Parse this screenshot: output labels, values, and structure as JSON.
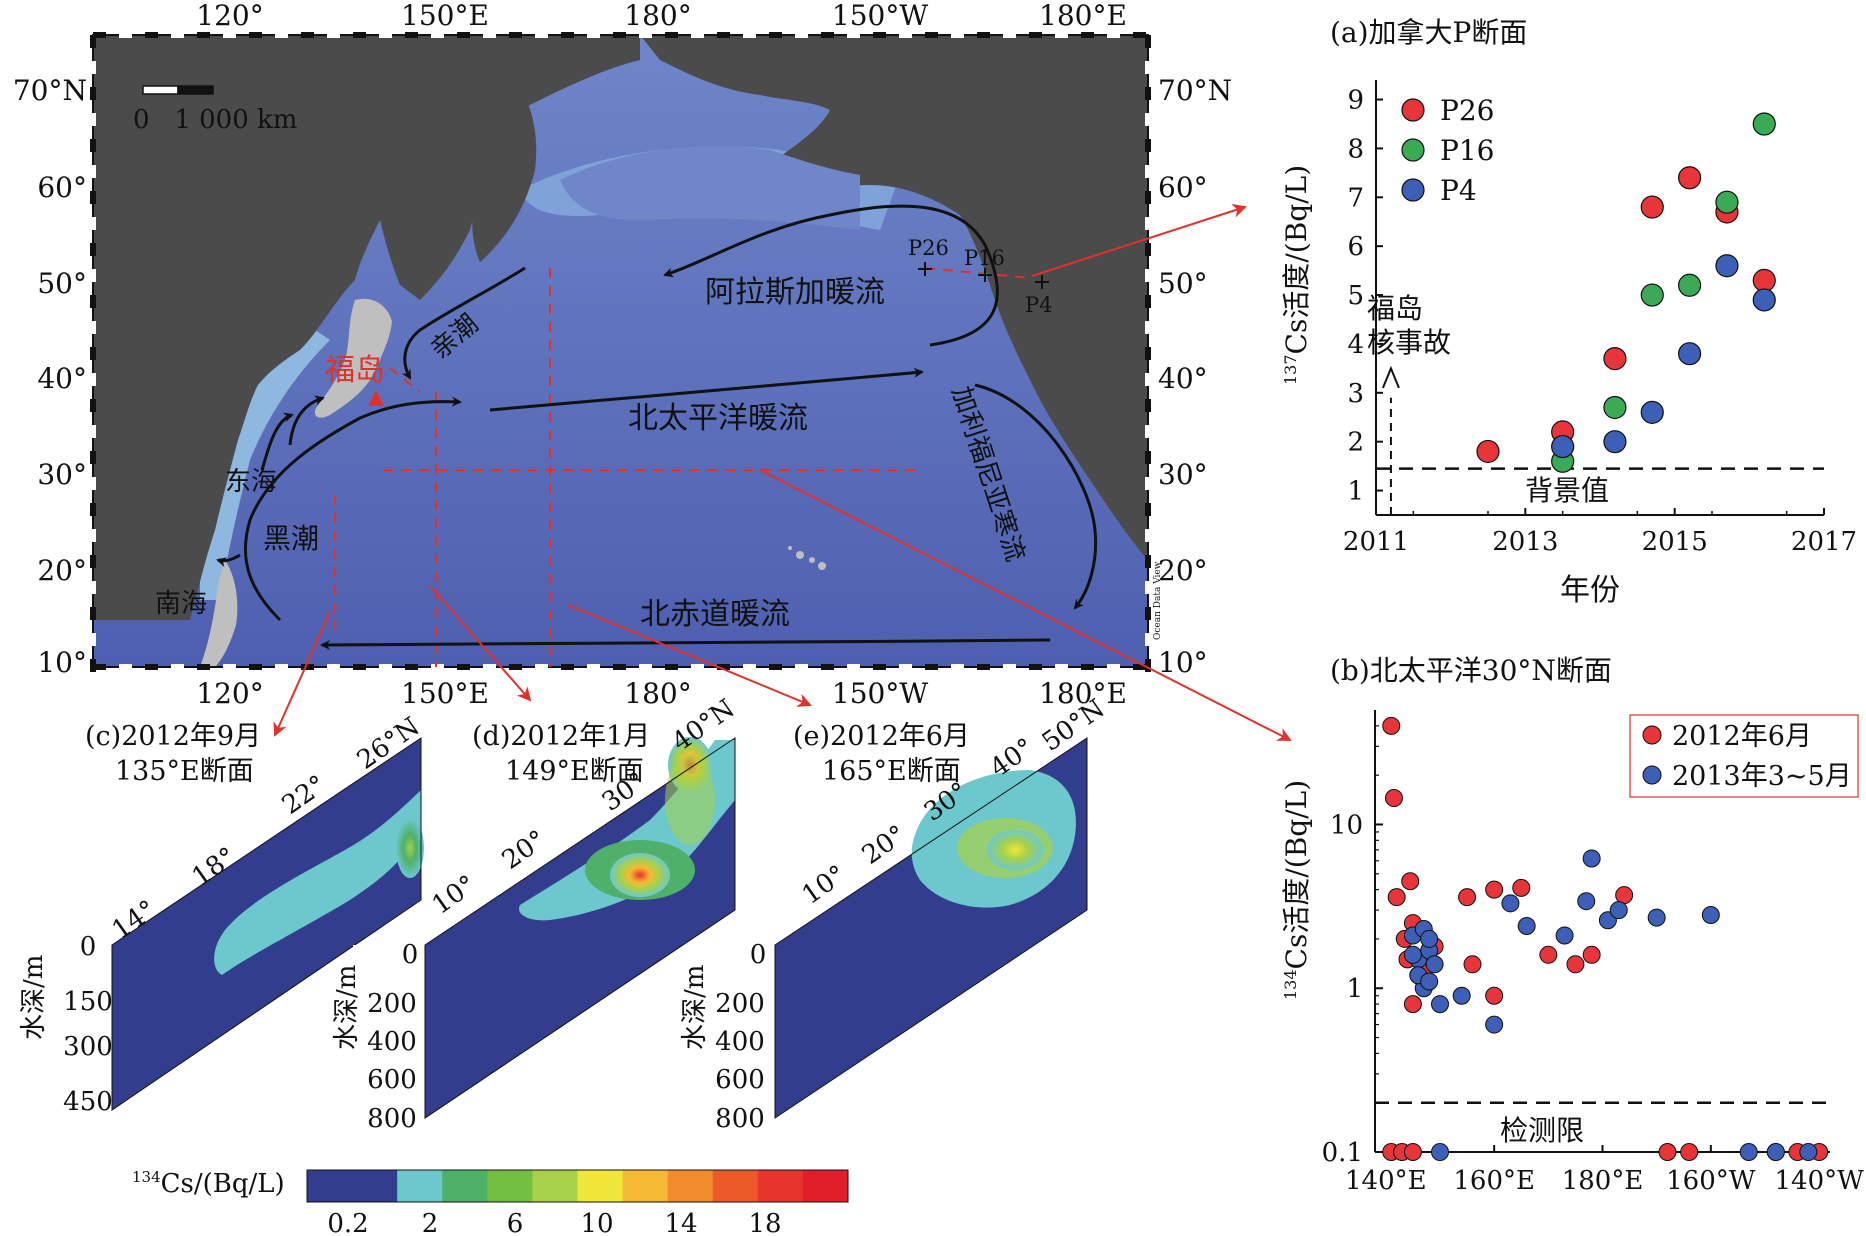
{
  "map": {
    "top_lon_ticks": [
      "120°",
      "150°E",
      "180°",
      "150°W",
      "180°E"
    ],
    "bottom_lon_ticks": [
      "120°",
      "150°E",
      "180°",
      "150°W",
      "180°E"
    ],
    "lat_ticks": [
      "70°N",
      "60°",
      "50°",
      "40°",
      "30°",
      "20°",
      "10°"
    ],
    "scale_label": "0   1 000 km",
    "watermark": "Ocean Data View",
    "labels": {
      "fukushima": "福岛",
      "oyashio": "亲潮",
      "kuroshio": "黑潮",
      "east_china_sea": "东海",
      "south_china_sea": "南海",
      "alaska_current": "阿拉斯加暖流",
      "north_pacific_current": "北太平洋暖流",
      "california_current": "加利福尼亚寒流",
      "north_equatorial_current": "北赤道暖流",
      "p26": "P26",
      "p16": "P16",
      "p4": "P4"
    }
  },
  "panel_a": {
    "title": "(a)加拿大P断面",
    "ylabel_sup": "137",
    "ylabel": "Cs活度/(Bq/L)",
    "xlabel": "年份",
    "fukushima_label_line1": "福岛",
    "fukushima_label_line2": "核事故",
    "background_label": "背景值",
    "chart_data": {
      "type": "scatter",
      "xlim": [
        2011,
        2017
      ],
      "ylim": [
        0.5,
        9.4
      ],
      "x_ticks": [
        "2011",
        "2013",
        "2015",
        "2017"
      ],
      "y_ticks": [
        "1",
        "2",
        "3",
        "4",
        "5",
        "6",
        "7",
        "8",
        "9"
      ],
      "legend_position": "top-left",
      "background_value": 1.45,
      "series": [
        {
          "name": "P26",
          "color": "#e8353a",
          "points": [
            [
              2012.5,
              1.8
            ],
            [
              2013.5,
              2.2
            ],
            [
              2014.2,
              3.7
            ],
            [
              2014.7,
              6.8
            ],
            [
              2015.2,
              7.4
            ],
            [
              2015.7,
              6.7
            ],
            [
              2016.2,
              5.3
            ]
          ]
        },
        {
          "name": "P16",
          "color": "#3aaa55",
          "points": [
            [
              2013.5,
              1.6
            ],
            [
              2014.2,
              2.7
            ],
            [
              2014.7,
              5.0
            ],
            [
              2015.2,
              5.2
            ],
            [
              2015.7,
              6.9
            ],
            [
              2016.2,
              8.5
            ]
          ]
        },
        {
          "name": "P4",
          "color": "#3d5fb8",
          "points": [
            [
              2013.5,
              1.9
            ],
            [
              2014.2,
              2.0
            ],
            [
              2014.7,
              2.6
            ],
            [
              2015.2,
              3.8
            ],
            [
              2015.7,
              5.6
            ],
            [
              2016.2,
              4.9
            ]
          ]
        }
      ]
    }
  },
  "panel_b": {
    "title": "(b)北太平洋30°N断面",
    "ylabel_sup": "134",
    "ylabel": "Cs活度/(Bq/L)",
    "detection_label": "检测限",
    "chart_data": {
      "type": "scatter",
      "y_scale": "log",
      "ylim": [
        0.1,
        50
      ],
      "y_ticks": [
        "0.1",
        "1",
        "10"
      ],
      "x_ticks": [
        "140°E",
        "160°E",
        "180°E",
        "160°W",
        "140°W"
      ],
      "xlim": [
        138,
        222
      ],
      "detection_limit": 0.2,
      "legend_position": "top-right",
      "series": [
        {
          "name": "2012年6月",
          "color": "#e8353a",
          "points": [
            [
              141,
              40
            ],
            [
              141.5,
              14.5
            ],
            [
              142,
              3.6
            ],
            [
              144.5,
              4.5
            ],
            [
              143.5,
              2.0
            ],
            [
              144,
              1.5
            ],
            [
              145,
              2.5
            ],
            [
              146,
              1.2
            ],
            [
              145,
              0.8
            ],
            [
              149,
              1.8
            ],
            [
              147,
              1.3
            ],
            [
              155,
              3.6
            ],
            [
              156,
              1.4
            ],
            [
              160,
              4.0
            ],
            [
              160,
              0.9
            ],
            [
              165,
              4.1
            ],
            [
              170,
              1.6
            ],
            [
              175,
              1.4
            ],
            [
              178,
              1.6
            ],
            [
              184,
              3.7
            ],
            [
              141,
              0.1
            ],
            [
              143,
              0.1
            ],
            [
              145,
              0.1
            ],
            [
              192,
              0.1
            ],
            [
              196,
              0.1
            ],
            [
              212,
              0.1
            ],
            [
              216,
              0.1
            ],
            [
              220,
              0.1
            ]
          ]
        },
        {
          "name": "2013年3~5月",
          "color": "#3d5fb8",
          "points": [
            [
              145,
              2.1
            ],
            [
              146,
              1.5
            ],
            [
              147,
              2.3
            ],
            [
              148,
              1.7
            ],
            [
              147,
              1.0
            ],
            [
              146,
              1.2
            ],
            [
              148,
              2.0
            ],
            [
              149,
              1.4
            ],
            [
              150,
              0.8
            ],
            [
              148,
              1.1
            ],
            [
              145,
              1.6
            ],
            [
              154,
              0.9
            ],
            [
              160,
              0.6
            ],
            [
              163,
              3.3
            ],
            [
              166,
              2.4
            ],
            [
              173,
              2.1
            ],
            [
              177,
              3.4
            ],
            [
              178,
              6.2
            ],
            [
              181,
              2.6
            ],
            [
              183,
              3.0
            ],
            [
              190,
              2.7
            ],
            [
              200,
              2.8
            ],
            [
              150,
              0.1
            ],
            [
              207,
              0.1
            ],
            [
              212,
              0.1
            ],
            [
              218,
              0.1
            ]
          ]
        }
      ]
    }
  },
  "sections": [
    {
      "title_line1": "(c)2012年9月",
      "title_line2": "135°E断面",
      "lat_ticks": [
        "14°",
        "18°",
        "22°",
        "26°N"
      ],
      "depth_ticks": [
        "0",
        "150",
        "300",
        "450"
      ],
      "depth_label": "水深/m"
    },
    {
      "title_line1": "(d)2012年1月",
      "title_line2": "149°E断面",
      "lat_ticks": [
        "10°",
        "20°",
        "30°",
        "40°N"
      ],
      "depth_ticks": [
        "0",
        "200",
        "400",
        "600",
        "800"
      ],
      "depth_label": "水深/m"
    },
    {
      "title_line1": "(e)2012年6月",
      "title_line2": "165°E断面",
      "lat_ticks": [
        "10°",
        "20°",
        "30°",
        "40°",
        "50°N"
      ],
      "depth_ticks": [
        "0",
        "200",
        "400",
        "600",
        "800"
      ],
      "depth_label": "水深/m"
    }
  ],
  "colorbar": {
    "label_sup": "134",
    "label": "Cs/(Bq/L)",
    "ticks": [
      "0.2",
      "2",
      "6",
      "10",
      "14",
      "18"
    ],
    "colors": [
      "#323d8e",
      "#323d8e",
      "#6cc8cc",
      "#4fb06a",
      "#72bf44",
      "#a7d14a",
      "#f1e73a",
      "#f5b933",
      "#f28a2e",
      "#ec5a2a",
      "#e8352c",
      "#e01f2b"
    ]
  }
}
